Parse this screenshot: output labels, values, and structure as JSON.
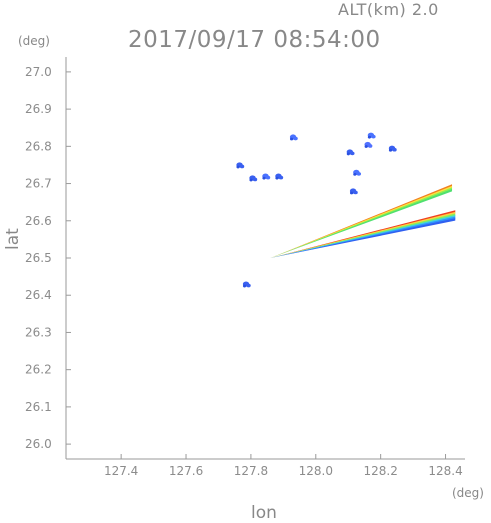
{
  "header": {
    "altitude_label": "ALT(km)  2.0",
    "timestamp": "2017/09/17  08:54:00"
  },
  "chart_data": {
    "type": "scatter",
    "title": "2017/09/17  08:54:00",
    "subtitle": "ALT(km)  2.0",
    "xlabel": "lon",
    "ylabel": "lat",
    "x_unit": "(deg)",
    "y_unit": "(deg)",
    "xlim": [
      127.23,
      128.46
    ],
    "ylim": [
      25.96,
      27.04
    ],
    "x_ticks": [
      "127.4",
      "127.6",
      "127.8",
      "128.0",
      "128.2",
      "128.4"
    ],
    "y_ticks": [
      "26.0",
      "26.1",
      "26.2",
      "26.3",
      "26.4",
      "26.5",
      "26.6",
      "26.7",
      "26.8",
      "26.9",
      "27.0"
    ],
    "grid": false,
    "echoes": [
      {
        "kind": "blob",
        "lon": 128.17,
        "lat": 26.83,
        "color": "#4a72ff"
      },
      {
        "kind": "blob",
        "lon": 128.235,
        "lat": 26.795,
        "color": "#3a60f0"
      },
      {
        "kind": "blob",
        "lon": 128.16,
        "lat": 26.805,
        "color": "#5070ff"
      },
      {
        "kind": "blob",
        "lon": 128.115,
        "lat": 26.68,
        "color": "#3a60f0"
      },
      {
        "kind": "blob",
        "lon": 128.125,
        "lat": 26.73,
        "color": "#4a72ff"
      },
      {
        "kind": "blob",
        "lon": 128.105,
        "lat": 26.785,
        "color": "#3a60f0"
      },
      {
        "kind": "blob",
        "lon": 127.93,
        "lat": 26.825,
        "color": "#4a72ff"
      },
      {
        "kind": "blob",
        "lon": 127.765,
        "lat": 26.75,
        "color": "#3a60f0"
      },
      {
        "kind": "blob",
        "lon": 127.805,
        "lat": 26.715,
        "color": "#3a60f0"
      },
      {
        "kind": "blob",
        "lon": 127.845,
        "lat": 26.72,
        "color": "#4a72ff"
      },
      {
        "kind": "blob",
        "lon": 127.885,
        "lat": 26.72,
        "color": "#3a60f0"
      },
      {
        "kind": "blob",
        "lon": 127.785,
        "lat": 26.43,
        "color": "#3a60f0"
      },
      {
        "kind": "band",
        "from": [
          127.86,
          26.5
        ],
        "to": [
          128.42,
          26.695
        ],
        "colors": [
          "#f08020",
          "#ffe040",
          "#90f050",
          "#50e070"
        ]
      },
      {
        "kind": "band",
        "from": [
          127.86,
          26.5
        ],
        "to": [
          128.43,
          26.625
        ],
        "colors": [
          "#f04020",
          "#ffd040",
          "#80f060",
          "#40d0e0",
          "#3090ff",
          "#3060f0"
        ]
      }
    ]
  }
}
